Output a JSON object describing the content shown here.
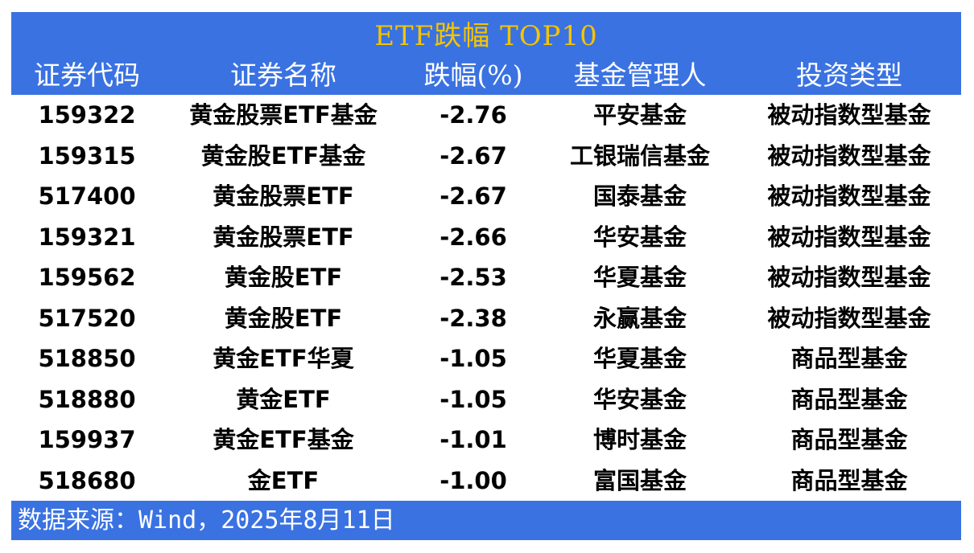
{
  "title": "ETF跌幅 TOP10",
  "columns": [
    "证券代码",
    "证券名称",
    "跌幅(%)",
    "基金管理人",
    "投资类型"
  ],
  "rows": [
    [
      "159322",
      "黄金股票ETF基金",
      "-2.76",
      "平安基金",
      "被动指数型基金"
    ],
    [
      "159315",
      "黄金股ETF基金",
      "-2.67",
      "工银瑞信基金",
      "被动指数型基金"
    ],
    [
      "517400",
      "黄金股票ETF",
      "-2.67",
      "国泰基金",
      "被动指数型基金"
    ],
    [
      "159321",
      "黄金股票ETF",
      "-2.66",
      "华安基金",
      "被动指数型基金"
    ],
    [
      "159562",
      "黄金股ETF",
      "-2.53",
      "华夏基金",
      "被动指数型基金"
    ],
    [
      "517520",
      "黄金股ETF",
      "-2.38",
      "永赢基金",
      "被动指数型基金"
    ],
    [
      "518850",
      "黄金ETF华夏",
      "-1.05",
      "华夏基金",
      "商品型基金"
    ],
    [
      "518880",
      "黄金ETF",
      "-1.05",
      "华安基金",
      "商品型基金"
    ],
    [
      "159937",
      "黄金ETF基金",
      "-1.01",
      "博时基金",
      "商品型基金"
    ],
    [
      "518680",
      "金ETF",
      "-1.00",
      "富国基金",
      "商品型基金"
    ]
  ],
  "footer": "数据来源：Wind，2025年8月11日",
  "colors": {
    "header_bg": "#3A72E2",
    "title": "#F5C400",
    "header_text": "#FFFFFF"
  }
}
